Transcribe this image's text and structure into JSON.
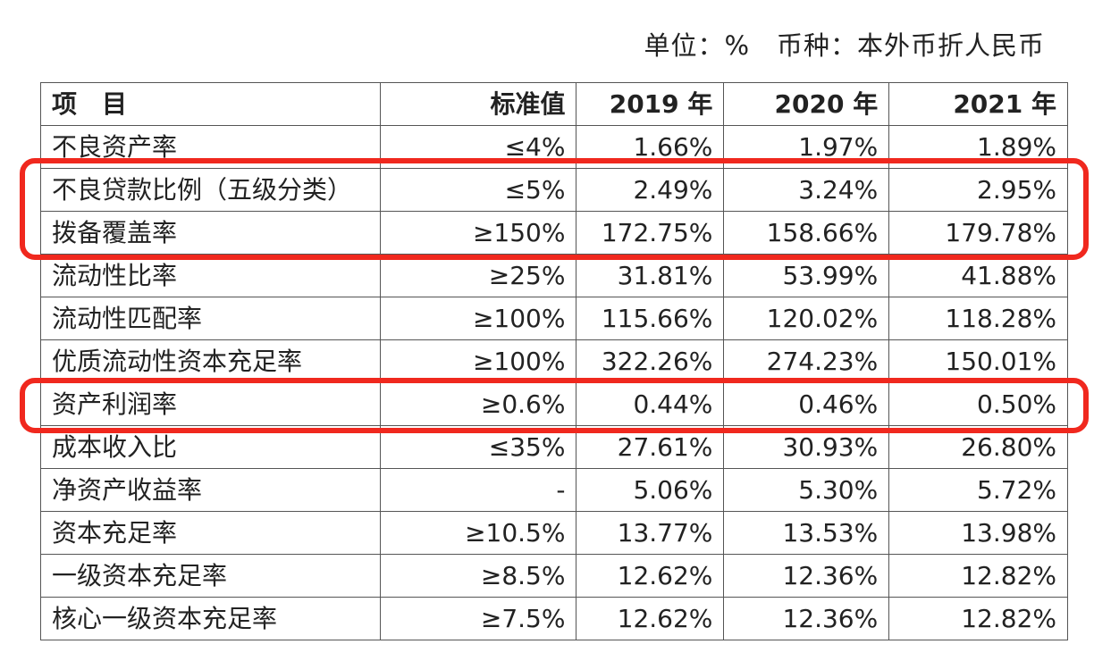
{
  "note": "单位：%　币种：本外币折人民币",
  "table": {
    "header": [
      "项　目",
      "标准值",
      "2019 年",
      "2020 年",
      "2021 年"
    ],
    "rows": [
      [
        "不良资产率",
        "≤4%",
        "1.66%",
        "1.97%",
        "1.89%"
      ],
      [
        "不良贷款比例（五级分类）",
        "≤5%",
        "2.49%",
        "3.24%",
        "2.95%"
      ],
      [
        "拨备覆盖率",
        "≥150%",
        "172.75%",
        "158.66%",
        "179.78%"
      ],
      [
        "流动性比率",
        "≥25%",
        "31.81%",
        "53.99%",
        "41.88%"
      ],
      [
        "流动性匹配率",
        "≥100%",
        "115.66%",
        "120.02%",
        "118.28%"
      ],
      [
        "优质流动性资本充足率",
        "≥100%",
        "322.26%",
        "274.23%",
        "150.01%"
      ],
      [
        "资产利润率",
        "≥0.6%",
        "0.44%",
        "0.46%",
        "0.50%"
      ],
      [
        "成本收入比",
        "≤35%",
        "27.61%",
        "30.93%",
        "26.80%"
      ],
      [
        "净资产收益率",
        "-",
        "5.06%",
        "5.30%",
        "5.72%"
      ],
      [
        "资本充足率",
        "≥10.5%",
        "13.77%",
        "13.53%",
        "13.98%"
      ],
      [
        "一级资本充足率",
        "≥8.5%",
        "12.62%",
        "12.36%",
        "12.82%"
      ],
      [
        "核心一级资本充足率",
        "≥7.5%",
        "12.62%",
        "12.36%",
        "12.82%"
      ]
    ]
  }
}
